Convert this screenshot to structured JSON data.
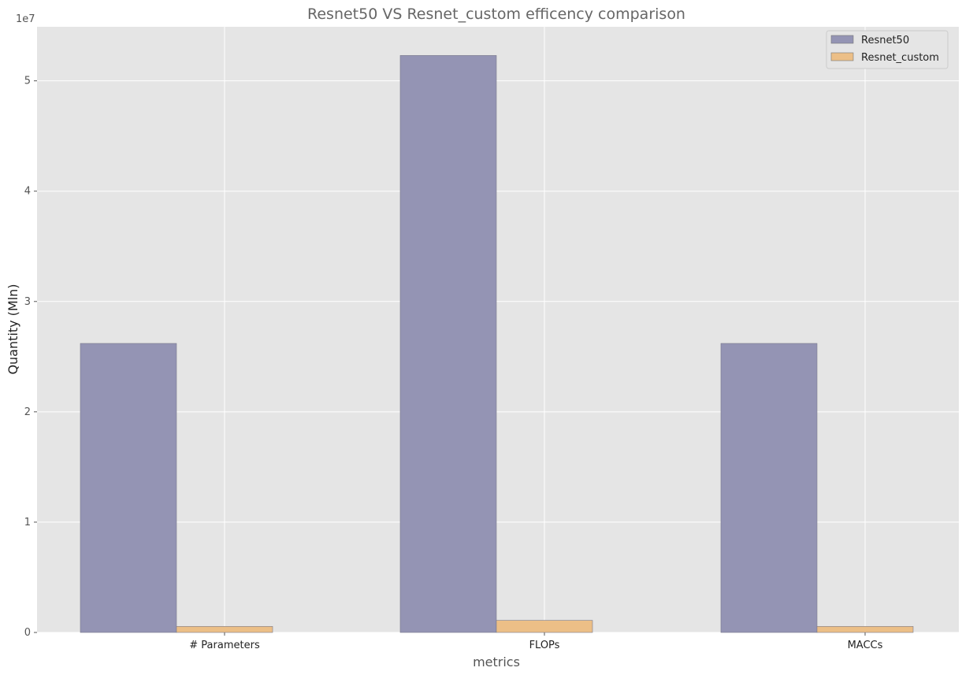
{
  "chart_data": {
    "type": "bar",
    "title": "Resnet50 VS Resnet_custom efficency comparison",
    "xlabel": "metrics",
    "ylabel": "Quantity (Mln)",
    "y_offset_label": "1e7",
    "categories": [
      "# Parameters",
      "FLOPs",
      "MACCs"
    ],
    "series": [
      {
        "name": "Resnet50",
        "values": [
          26200000,
          52300000,
          26200000
        ],
        "color": "#9494b4"
      },
      {
        "name": "Resnet_custom",
        "values": [
          550000,
          1100000,
          550000
        ],
        "color": "#ecbf87"
      }
    ],
    "y_ticks": [
      0,
      10000000,
      20000000,
      30000000,
      40000000,
      50000000
    ],
    "y_tick_labels": [
      "0",
      "1",
      "2",
      "3",
      "4",
      "5"
    ],
    "ylim": [
      0,
      54900000
    ],
    "grid": true,
    "legend_position": "top-right",
    "plot_background": "#e5e5e5"
  }
}
